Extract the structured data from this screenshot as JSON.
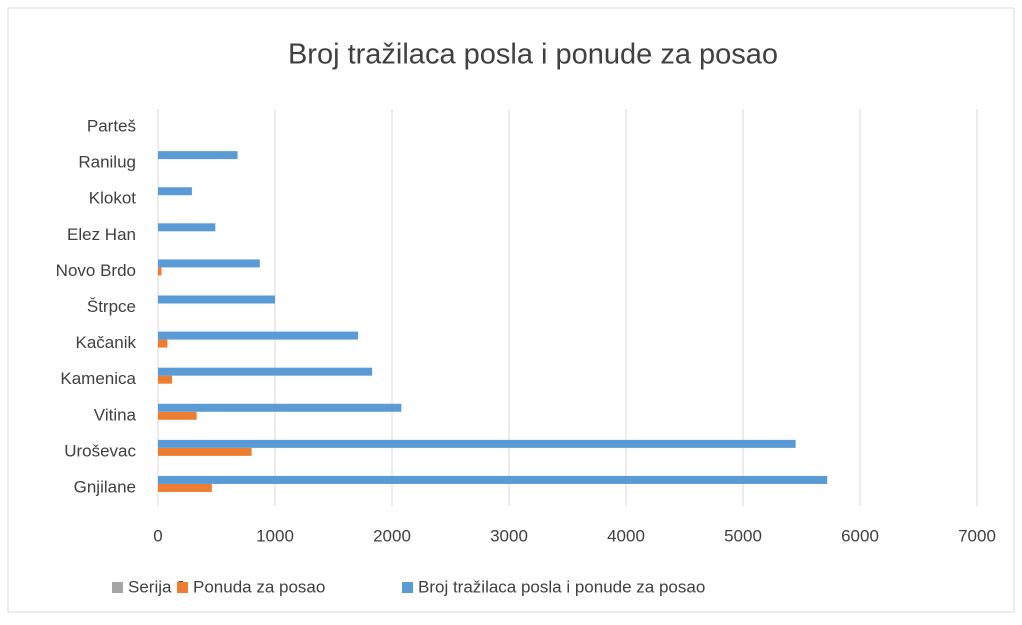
{
  "chart_data": {
    "type": "bar",
    "orientation": "horizontal",
    "title": "Broj tražilaca posla i ponude za posao",
    "categories": [
      "Gnjilane",
      "Uroševac",
      "Vitina",
      "Kamenica",
      "Kačanik",
      "Štrpce",
      "Novo Brdo",
      "Elez Han",
      "Klokot",
      "Ranilug",
      "Parteš"
    ],
    "series": [
      {
        "name": "Serija 3",
        "color": "#a5a5a5",
        "values": [
          null,
          null,
          null,
          null,
          null,
          null,
          null,
          null,
          null,
          null,
          null
        ]
      },
      {
        "name": "Ponuda za posao",
        "color": "#ed7d31",
        "values": [
          460,
          800,
          330,
          120,
          80,
          0,
          30,
          0,
          0,
          0,
          0
        ]
      },
      {
        "name": "Broj tražilaca posla i ponude za posao",
        "color": "#5b9bd5",
        "values": [
          5720,
          5450,
          2080,
          1830,
          1710,
          1000,
          870,
          490,
          290,
          680,
          0
        ]
      }
    ],
    "xlim": [
      0,
      7000
    ],
    "xticks": [
      0,
      1000,
      2000,
      3000,
      4000,
      5000,
      6000,
      7000
    ],
    "grid": true,
    "legend": "bottom"
  }
}
